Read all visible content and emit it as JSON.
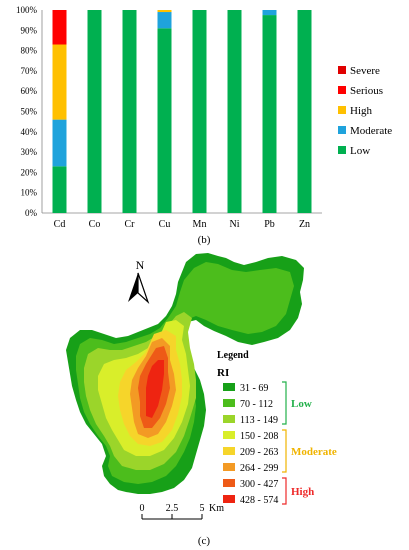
{
  "chart_data": [
    {
      "type": "bar",
      "stacked": true,
      "panel_label": "(b)",
      "title": "",
      "xlabel": "",
      "ylabel": "",
      "ylim": [
        0,
        100
      ],
      "y_ticks": [
        "0%",
        "10%",
        "20%",
        "30%",
        "40%",
        "50%",
        "60%",
        "70%",
        "80%",
        "90%",
        "100%"
      ],
      "categories": [
        "Cd",
        "Co",
        "Cr",
        "Cu",
        "Mn",
        "Ni",
        "Pb",
        "Zn"
      ],
      "series": [
        {
          "name": "Low",
          "color": "#00b050",
          "values": [
            23,
            100,
            100,
            91,
            100,
            100,
            97.5,
            100
          ]
        },
        {
          "name": "Moderate",
          "color": "#1fa3dc",
          "values": [
            23,
            0,
            0,
            8,
            0,
            0,
            2.5,
            0
          ]
        },
        {
          "name": "High",
          "color": "#ffc000",
          "values": [
            37,
            0,
            0,
            1,
            0,
            0,
            0,
            0
          ]
        },
        {
          "name": "Serious",
          "color": "#ff0000",
          "values": [
            17,
            0,
            0,
            0,
            0,
            0,
            0,
            0
          ]
        },
        {
          "name": "Severe",
          "color": "#e00000",
          "values": [
            0,
            0,
            0,
            0,
            0,
            0,
            0,
            0
          ]
        }
      ],
      "legend_order": [
        "Severe",
        "Serious",
        "High",
        "Moderate",
        "Low"
      ],
      "legend_position": "right",
      "grid": false
    },
    {
      "type": "map",
      "panel_label": "(c)",
      "north_label": "N",
      "legend_title": "Legend",
      "variable": "RI",
      "classes": [
        {
          "range": "31 - 69",
          "color": "#17a018"
        },
        {
          "range": "70 - 112",
          "color": "#4cbd1c"
        },
        {
          "range": "113 - 149",
          "color": "#9bd52a"
        },
        {
          "range": "150 - 208",
          "color": "#d9ee2a"
        },
        {
          "range": "209 - 263",
          "color": "#f6d52a"
        },
        {
          "range": "264 - 299",
          "color": "#f39a24"
        },
        {
          "range": "300 - 427",
          "color": "#ee5a17"
        },
        {
          "range": "428 - 574",
          "color": "#ee2411"
        }
      ],
      "groups": [
        {
          "label": "Low",
          "color": "#22b04a",
          "from": 0,
          "to": 2
        },
        {
          "label": "Moderate",
          "color": "#f0b400",
          "from": 3,
          "to": 5
        },
        {
          "label": "High",
          "color": "#ee2a2a",
          "from": 6,
          "to": 7
        }
      ],
      "scale_ticks": [
        "0",
        "2.5",
        "5"
      ],
      "scale_unit": "Km"
    }
  ]
}
